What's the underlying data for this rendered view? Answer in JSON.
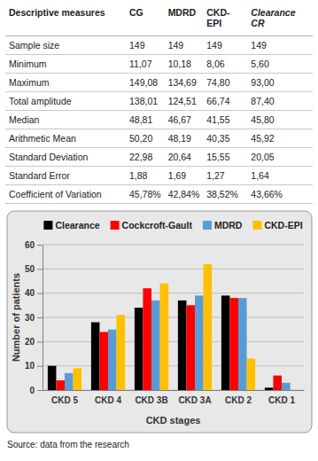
{
  "table": {
    "columns": [
      "Descriptive measures",
      "CG",
      "MDRD",
      "CKD-EPI",
      "Clearance CR"
    ],
    "rows": [
      [
        "Sample size",
        "149",
        "149",
        "149",
        "149"
      ],
      [
        "Minimum",
        "11,07",
        "10,18",
        "8,06",
        "5,60"
      ],
      [
        "Maximum",
        "149,08",
        "134,69",
        "74,80",
        "93,00"
      ],
      [
        "Total amplitude",
        "138,01",
        "124,51",
        "66,74",
        "87,40"
      ],
      [
        "Median",
        "48,81",
        "46,67",
        "41,55",
        "45,80"
      ],
      [
        "Arithmetic Mean",
        "50,20",
        "48,19",
        "40,35",
        "45,92"
      ],
      [
        "Standard Deviation",
        "22,98",
        "20,64",
        "15,55",
        "20,05"
      ],
      [
        "Standard Error",
        "1,88",
        "1,69",
        "1,27",
        "1,64"
      ],
      [
        "Coefficient of Variation",
        "45,78%",
        "42,84%",
        "38,52%",
        "43,66%"
      ]
    ]
  },
  "chart_data": {
    "type": "bar",
    "x_label": "CKD stages",
    "y_label": "Number of patients",
    "categories": [
      "CKD 5",
      "CKD 4",
      "CKD 3B",
      "CKD 3A",
      "CKD 2",
      "CKD 1"
    ],
    "series": [
      {
        "name": "Clearance",
        "color": "#000000",
        "values": [
          10,
          28,
          34,
          37,
          39,
          1
        ]
      },
      {
        "name": "Cockcroft-Gault",
        "color": "#ff0000",
        "values": [
          4,
          24,
          42,
          35,
          38,
          6
        ]
      },
      {
        "name": "MDRD",
        "color": "#5b9bd5",
        "values": [
          7,
          25,
          37,
          39,
          38,
          3
        ]
      },
      {
        "name": "CKD-EPI",
        "color": "#ffc000",
        "values": [
          9,
          31,
          44,
          52,
          13,
          0
        ]
      }
    ],
    "ylim": [
      0,
      60
    ],
    "yticks": [
      0,
      10,
      20,
      30,
      40,
      50,
      60
    ],
    "grid": true,
    "legend": "top"
  },
  "source": "Source: data from the research"
}
